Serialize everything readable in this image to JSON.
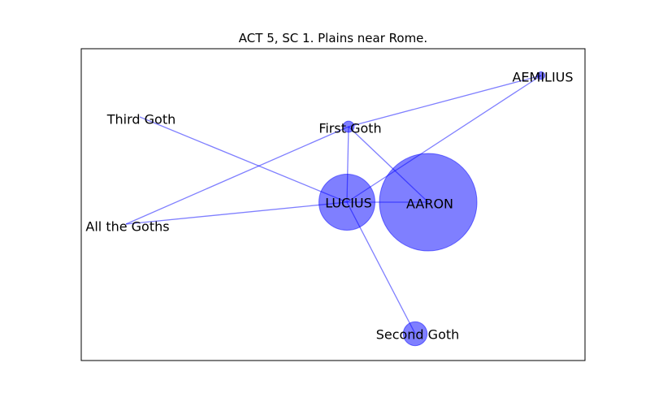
{
  "title": "ACT 5, SC 1. Plains near Rome.",
  "colors": {
    "node": "#0000ff",
    "edge": "#0000ff"
  },
  "nodes": [
    {
      "id": "aaron",
      "label": "AARON",
      "weight": 100
    },
    {
      "id": "lucius",
      "label": "LUCIUS",
      "weight": 33
    },
    {
      "id": "second-goth",
      "label": "Second Goth",
      "weight": 6
    },
    {
      "id": "first-goth",
      "label": "First Goth",
      "weight": 1.3
    },
    {
      "id": "aemilius",
      "label": "AEMILIUS",
      "weight": 0.6
    },
    {
      "id": "third-goth",
      "label": "Third Goth",
      "weight": 0
    },
    {
      "id": "all-the-goths",
      "label": "All the Goths",
      "weight": 0
    }
  ],
  "edges": [
    [
      "lucius",
      "aaron"
    ],
    [
      "lucius",
      "second-goth"
    ],
    [
      "lucius",
      "first-goth"
    ],
    [
      "lucius",
      "third-goth"
    ],
    [
      "lucius",
      "all-the-goths"
    ],
    [
      "lucius",
      "aemilius"
    ],
    [
      "first-goth",
      "aemilius"
    ],
    [
      "first-goth",
      "aaron"
    ],
    [
      "first-goth",
      "all-the-goths"
    ]
  ]
}
